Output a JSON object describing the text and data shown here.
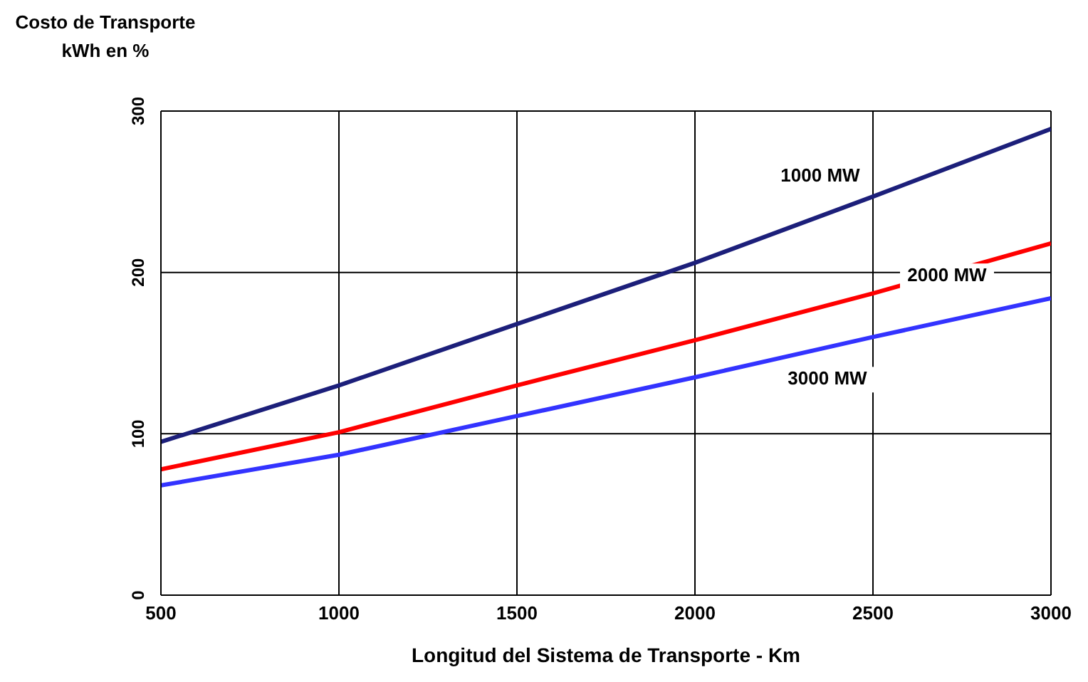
{
  "chart_data": {
    "type": "line",
    "ylabel": "Costo de Transporte kWh en %",
    "xlabel": "Longitud del Sistema de Transporte - Km",
    "x": [
      500,
      1000,
      1500,
      2000,
      2500,
      3000
    ],
    "series": [
      {
        "name": "1000 MW",
        "color": "#1c1f7a",
        "values": [
          95,
          130,
          168,
          206,
          247,
          289
        ]
      },
      {
        "name": "2000 MW",
        "color": "#ff0000",
        "values": [
          78,
          101,
          130,
          158,
          187,
          218
        ]
      },
      {
        "name": "3000 MW",
        "color": "#3333ff",
        "values": [
          68,
          87,
          111,
          135,
          160,
          184
        ]
      }
    ],
    "xlim": [
      500,
      3000
    ],
    "xticks": [
      500,
      1000,
      1500,
      2000,
      2500,
      3000
    ],
    "ylim": [
      0,
      300
    ],
    "yticks": [
      0,
      100,
      200,
      300
    ],
    "grid": true,
    "marker": "none",
    "line_style": "solid",
    "legend": false
  }
}
